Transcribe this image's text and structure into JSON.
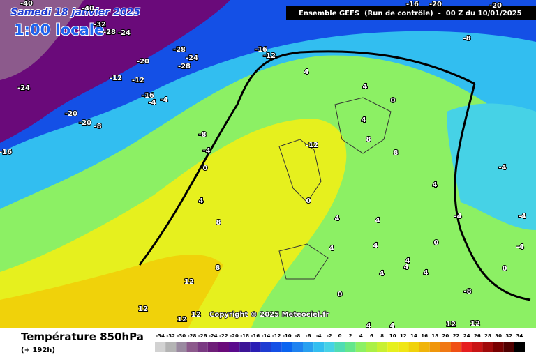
{
  "header": {
    "date": "Samedi 18 janvier 2025",
    "time": "1:00 locale",
    "run": "Ensemble GEFS  (Run de contrôle)  -  00 Z du 10/01/2025",
    "copyright": "Copyright © 2025 Meteociel.fr"
  },
  "legend": {
    "title": "Température 850hPa",
    "lead": "(+ 192h)",
    "ticks": [
      -34,
      -32,
      -30,
      -28,
      -26,
      -24,
      -22,
      -20,
      -18,
      -16,
      -14,
      -12,
      -10,
      -8,
      -6,
      -4,
      -2,
      0,
      2,
      4,
      6,
      8,
      10,
      12,
      14,
      16,
      18,
      20,
      22,
      24,
      26,
      28,
      30,
      32,
      34
    ],
    "colors": [
      "#d2d2d2",
      "#b4b4b4",
      "#9a8aa0",
      "#8c5a8c",
      "#7a3a82",
      "#6e1e78",
      "#6a0a7a",
      "#5a0a8c",
      "#3c1496",
      "#2a1eb4",
      "#1e3cd2",
      "#1450e6",
      "#0a64f0",
      "#1e82f0",
      "#28a0f0",
      "#32bef0",
      "#46d2e6",
      "#50dcb4",
      "#64e68c",
      "#8cf064",
      "#aaf046",
      "#c8f032",
      "#e6f01e",
      "#f0e614",
      "#f0d20a",
      "#f0b40a",
      "#f0960a",
      "#f07814",
      "#f05014",
      "#e61e1e",
      "#c81414",
      "#a00a0a",
      "#780000",
      "#500000",
      "#000000"
    ]
  },
  "map": {
    "contour_labels": [
      -40,
      -40,
      -16,
      -20,
      -20,
      -32,
      -28,
      -24,
      -8,
      -28,
      -24,
      -16,
      -12,
      -20,
      -28,
      -24,
      -12,
      -12,
      -16,
      -4,
      -4,
      4,
      4,
      0,
      -20,
      -20,
      -8,
      4,
      -8,
      8,
      -4,
      -12,
      8,
      -16,
      0,
      -4,
      4,
      4,
      0,
      8,
      4,
      4,
      -4,
      -4,
      4,
      4,
      0,
      -4,
      4,
      4,
      8,
      4,
      0,
      4,
      12,
      -8,
      0,
      12,
      12,
      12,
      12,
      12,
      4,
      4
    ]
  }
}
